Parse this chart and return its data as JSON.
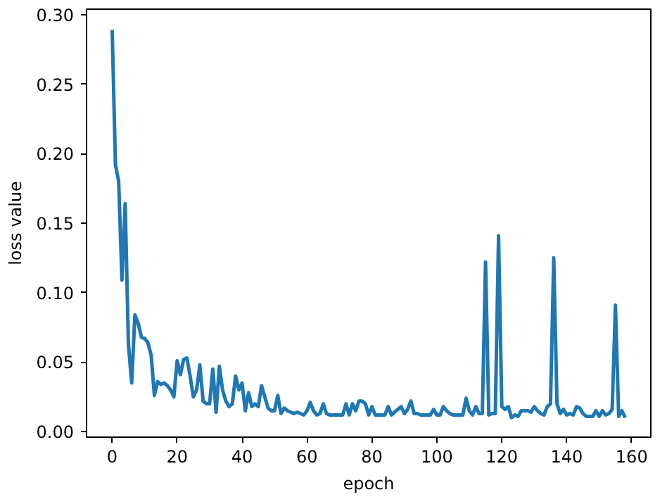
{
  "chart_data": {
    "type": "line",
    "xlabel": "epoch",
    "ylabel": "loss value",
    "xlim": [
      -7.9,
      165.9
    ],
    "ylim": [
      -0.004,
      0.304
    ],
    "xticks": [
      0,
      20,
      40,
      60,
      80,
      100,
      120,
      140,
      160
    ],
    "yticks": [
      {
        "value": 0,
        "label": "0.00"
      },
      {
        "value": 0.05,
        "label": "0.05"
      },
      {
        "value": 0.1,
        "label": "0.10"
      },
      {
        "value": 0.15,
        "label": "0.15"
      },
      {
        "value": 0.2,
        "label": "0.20"
      },
      {
        "value": 0.25,
        "label": "0.25"
      },
      {
        "value": 0.3,
        "label": "0.30"
      }
    ],
    "grid": false,
    "marker": "none",
    "line_style": "solid",
    "x": [
      0,
      1,
      2,
      3,
      4,
      5,
      6,
      7,
      8,
      9,
      10,
      11,
      12,
      13,
      14,
      15,
      16,
      17,
      18,
      19,
      20,
      21,
      22,
      23,
      24,
      25,
      26,
      27,
      28,
      29,
      30,
      31,
      32,
      33,
      34,
      35,
      36,
      37,
      38,
      39,
      40,
      41,
      42,
      43,
      44,
      45,
      46,
      47,
      48,
      49,
      50,
      51,
      52,
      53,
      54,
      55,
      56,
      57,
      58,
      59,
      60,
      61,
      62,
      63,
      64,
      65,
      66,
      67,
      68,
      69,
      70,
      71,
      72,
      73,
      74,
      75,
      76,
      77,
      78,
      79,
      80,
      81,
      82,
      83,
      84,
      85,
      86,
      87,
      88,
      89,
      90,
      91,
      92,
      93,
      94,
      95,
      96,
      97,
      98,
      99,
      100,
      101,
      102,
      103,
      104,
      105,
      106,
      107,
      108,
      109,
      110,
      111,
      112,
      113,
      114,
      115,
      116,
      117,
      118,
      119,
      120,
      121,
      122,
      123,
      124,
      125,
      126,
      127,
      128,
      129,
      130,
      131,
      132,
      133,
      134,
      135,
      136,
      137,
      138,
      139,
      140,
      141,
      142,
      143,
      144,
      145,
      146,
      147,
      148,
      149,
      150,
      151,
      152,
      153,
      154,
      155,
      156,
      157,
      158
    ],
    "series": [
      {
        "color": "#1f77b4",
        "values": [
          0.289,
          0.192,
          0.18,
          0.109,
          0.164,
          0.063,
          0.035,
          0.084,
          0.078,
          0.068,
          0.067,
          0.064,
          0.055,
          0.026,
          0.036,
          0.034,
          0.035,
          0.033,
          0.03,
          0.025,
          0.051,
          0.041,
          0.052,
          0.053,
          0.04,
          0.025,
          0.03,
          0.048,
          0.022,
          0.02,
          0.02,
          0.045,
          0.014,
          0.047,
          0.03,
          0.022,
          0.018,
          0.02,
          0.04,
          0.03,
          0.035,
          0.015,
          0.028,
          0.018,
          0.02,
          0.018,
          0.033,
          0.025,
          0.017,
          0.015,
          0.015,
          0.026,
          0.013,
          0.017,
          0.015,
          0.014,
          0.013,
          0.014,
          0.013,
          0.012,
          0.015,
          0.021,
          0.015,
          0.012,
          0.013,
          0.02,
          0.013,
          0.012,
          0.012,
          0.012,
          0.012,
          0.012,
          0.02,
          0.012,
          0.02,
          0.015,
          0.022,
          0.022,
          0.02,
          0.012,
          0.018,
          0.012,
          0.012,
          0.012,
          0.012,
          0.018,
          0.012,
          0.014,
          0.016,
          0.018,
          0.013,
          0.016,
          0.022,
          0.013,
          0.013,
          0.012,
          0.012,
          0.012,
          0.012,
          0.016,
          0.012,
          0.012,
          0.018,
          0.015,
          0.013,
          0.012,
          0.012,
          0.012,
          0.012,
          0.024,
          0.015,
          0.012,
          0.018,
          0.013,
          0.013,
          0.122,
          0.012,
          0.013,
          0.013,
          0.141,
          0.018,
          0.016,
          0.018,
          0.01,
          0.012,
          0.011,
          0.015,
          0.015,
          0.015,
          0.014,
          0.018,
          0.015,
          0.013,
          0.012,
          0.018,
          0.02,
          0.125,
          0.02,
          0.013,
          0.016,
          0.012,
          0.013,
          0.012,
          0.018,
          0.017,
          0.013,
          0.011,
          0.011,
          0.011,
          0.015,
          0.011,
          0.015,
          0.012,
          0.013,
          0.016,
          0.091,
          0.011,
          0.015,
          0.01
        ]
      }
    ]
  }
}
